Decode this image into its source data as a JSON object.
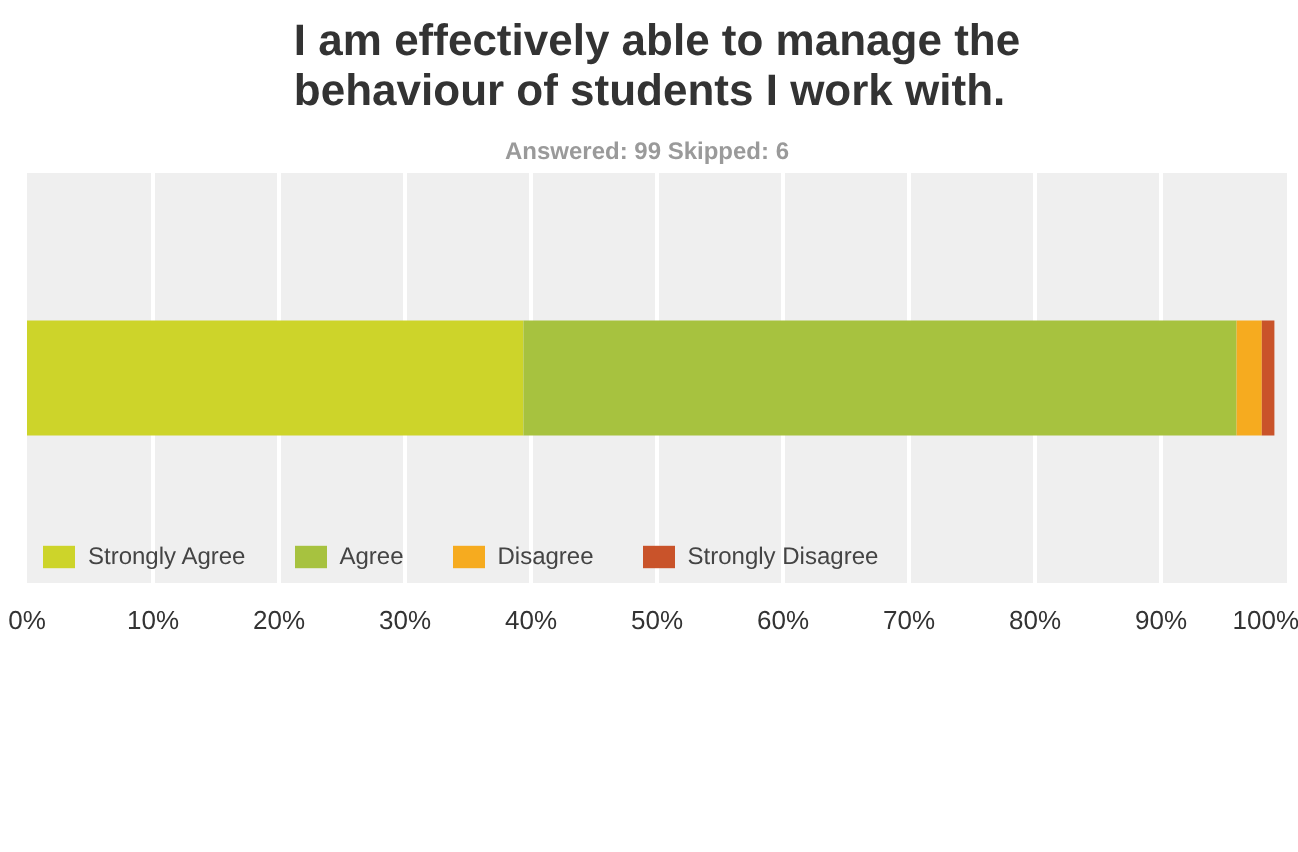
{
  "chart_data": {
    "type": "bar",
    "orientation": "horizontal",
    "stacked": true,
    "title": "I am effectively able to manage the\nbehaviour of students I work with.",
    "subtitle": "Answered: 99    Skipped: 6",
    "categories": [
      null
    ],
    "series": [
      {
        "name": "Strongly Agree",
        "color": "#cdd42a",
        "values": [
          39.4
        ]
      },
      {
        "name": "Agree",
        "color": "#a7c23f",
        "values": [
          56.6
        ]
      },
      {
        "name": "Disagree",
        "color": "#f6ab1f",
        "values": [
          2.0
        ]
      },
      {
        "name": "Strongly Disagree",
        "color": "#c9532a",
        "values": [
          1.0
        ]
      }
    ],
    "xlim": [
      0,
      100
    ],
    "xticks": [
      {
        "value": 0,
        "label": "0%"
      },
      {
        "value": 10,
        "label": "10%"
      },
      {
        "value": 20,
        "label": "20%"
      },
      {
        "value": 30,
        "label": "30%"
      },
      {
        "value": 40,
        "label": "40%"
      },
      {
        "value": 50,
        "label": "50%"
      },
      {
        "value": 60,
        "label": "60%"
      },
      {
        "value": 70,
        "label": "70%"
      },
      {
        "value": 80,
        "label": "80%"
      },
      {
        "value": 90,
        "label": "90%"
      },
      {
        "value": 100,
        "label": "100%"
      }
    ],
    "grid": "x",
    "legend": "bottom",
    "tick_labels": "x"
  }
}
